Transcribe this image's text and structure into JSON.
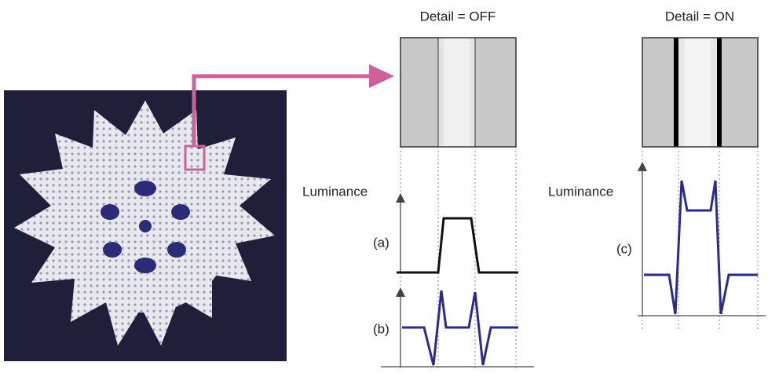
{
  "panels": [
    {
      "title": "Detail = OFF",
      "axis_label": "Luminance",
      "curves": [
        {
          "label": "(a)"
        },
        {
          "label": "(b)"
        }
      ]
    },
    {
      "title": "Detail = ON",
      "axis_label": "Luminance",
      "curves": [
        {
          "label": "(c)"
        }
      ]
    }
  ]
}
